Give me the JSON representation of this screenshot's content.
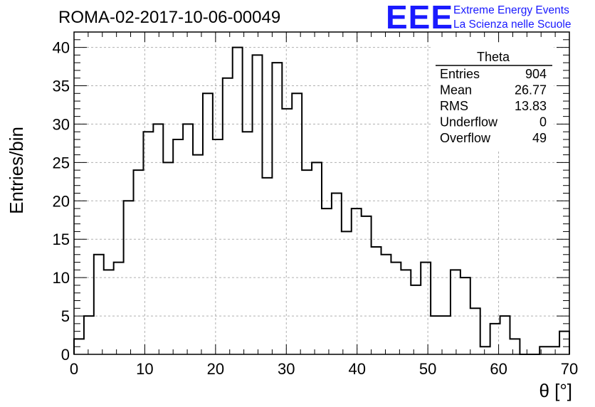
{
  "title": "ROMA-02-2017-10-06-00049",
  "logo": {
    "mark": "EEE",
    "line1": "Extreme Energy Events",
    "line2": "La Scienza nelle Scuole",
    "color": "#1a1aff"
  },
  "stats": {
    "title": "Theta",
    "rows": [
      {
        "label": "Entries",
        "value": "904"
      },
      {
        "label": "Mean",
        "value": "26.77"
      },
      {
        "label": "RMS",
        "value": "13.83"
      },
      {
        "label": "Underflow",
        "value": "0"
      },
      {
        "label": "Overflow",
        "value": "49"
      }
    ]
  },
  "chart_data": {
    "type": "bar",
    "style": "step-histogram",
    "title": "ROMA-02-2017-10-06-00049",
    "xlabel": "θ [°]",
    "ylabel": "Entries/bin",
    "xlim": [
      0,
      70
    ],
    "ylim": [
      0,
      42
    ],
    "grid": true,
    "bin_width": 1.4,
    "x_ticks": [
      0,
      10,
      20,
      30,
      40,
      50,
      60,
      70
    ],
    "y_ticks": [
      0,
      5,
      10,
      15,
      20,
      25,
      30,
      35,
      40
    ],
    "bin_edges_start": 0,
    "values": [
      2,
      5,
      13,
      11,
      12,
      20,
      24,
      29,
      30,
      25,
      28,
      30,
      26,
      34,
      28,
      36,
      40,
      29,
      39,
      23,
      38,
      32,
      34,
      24,
      25,
      19,
      21,
      16,
      19,
      18,
      14,
      13,
      12,
      11,
      9,
      12,
      5,
      5,
      11,
      10,
      6,
      1,
      4,
      5,
      2,
      0,
      0,
      1,
      1,
      3
    ],
    "line_color": "#000000"
  }
}
